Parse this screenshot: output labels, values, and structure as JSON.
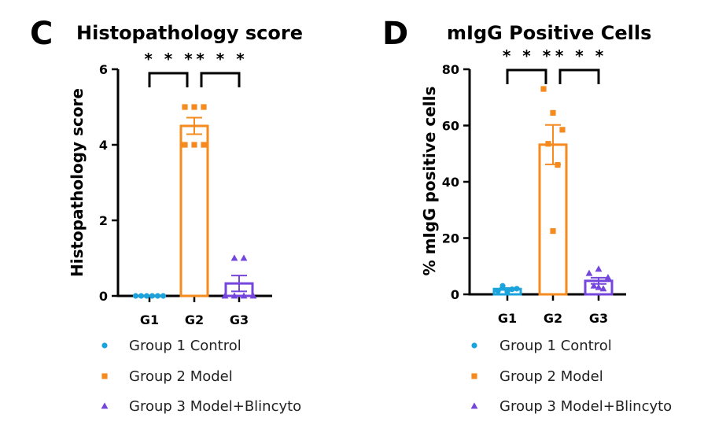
{
  "colors": {
    "g1": "#1ca3dc",
    "g2": "#f58a1f",
    "g3": "#7446db"
  },
  "legend": [
    {
      "label": "Group 1 Control",
      "marker": "circle",
      "color_key": "g1"
    },
    {
      "label": "Group 2 Model",
      "marker": "square",
      "color_key": "g2"
    },
    {
      "label": "Group 3 Model+Blincyto",
      "marker": "triangle",
      "color_key": "g3"
    }
  ],
  "chart_data": [
    {
      "panel": "C",
      "type": "bar",
      "title": "Histopathology score",
      "ylabel": "Histopathology score",
      "xlabel": "",
      "categories": [
        "G1",
        "G2",
        "G3"
      ],
      "means": [
        0,
        4.5,
        0.33
      ],
      "sem": [
        0,
        0.22,
        0.21
      ],
      "points": [
        [
          0,
          0,
          0,
          0,
          0,
          0
        ],
        [
          5,
          5,
          5,
          4,
          4,
          4
        ],
        [
          0,
          0,
          0,
          0,
          1,
          1
        ]
      ],
      "ylim": [
        0,
        6
      ],
      "yticks": [
        0,
        2,
        4,
        6
      ],
      "significance": [
        {
          "from": "G1",
          "to": "G2",
          "label": "***"
        },
        {
          "from": "G2",
          "to": "G3",
          "label": "***"
        }
      ]
    },
    {
      "panel": "D",
      "type": "bar",
      "title": "mIgG Positive Cells",
      "ylabel": "% mIgG positive cells",
      "xlabel": "",
      "categories": [
        "G1",
        "G2",
        "G3"
      ],
      "means": [
        1.9,
        53.2,
        4.8
      ],
      "sem": [
        0.35,
        7.0,
        1.1
      ],
      "points": [
        [
          1.2,
          1.5,
          2.0,
          3.0,
          1.8,
          1.0
        ],
        [
          73,
          64.5,
          58.5,
          53.5,
          46,
          22.5
        ],
        [
          7.5,
          9.0,
          6.0,
          3.0,
          2.0,
          2.5
        ]
      ],
      "ylim": [
        0,
        80
      ],
      "yticks": [
        0,
        20,
        40,
        60,
        80
      ],
      "significance": [
        {
          "from": "G1",
          "to": "G2",
          "label": "***"
        },
        {
          "from": "G2",
          "to": "G3",
          "label": "***"
        }
      ]
    }
  ]
}
